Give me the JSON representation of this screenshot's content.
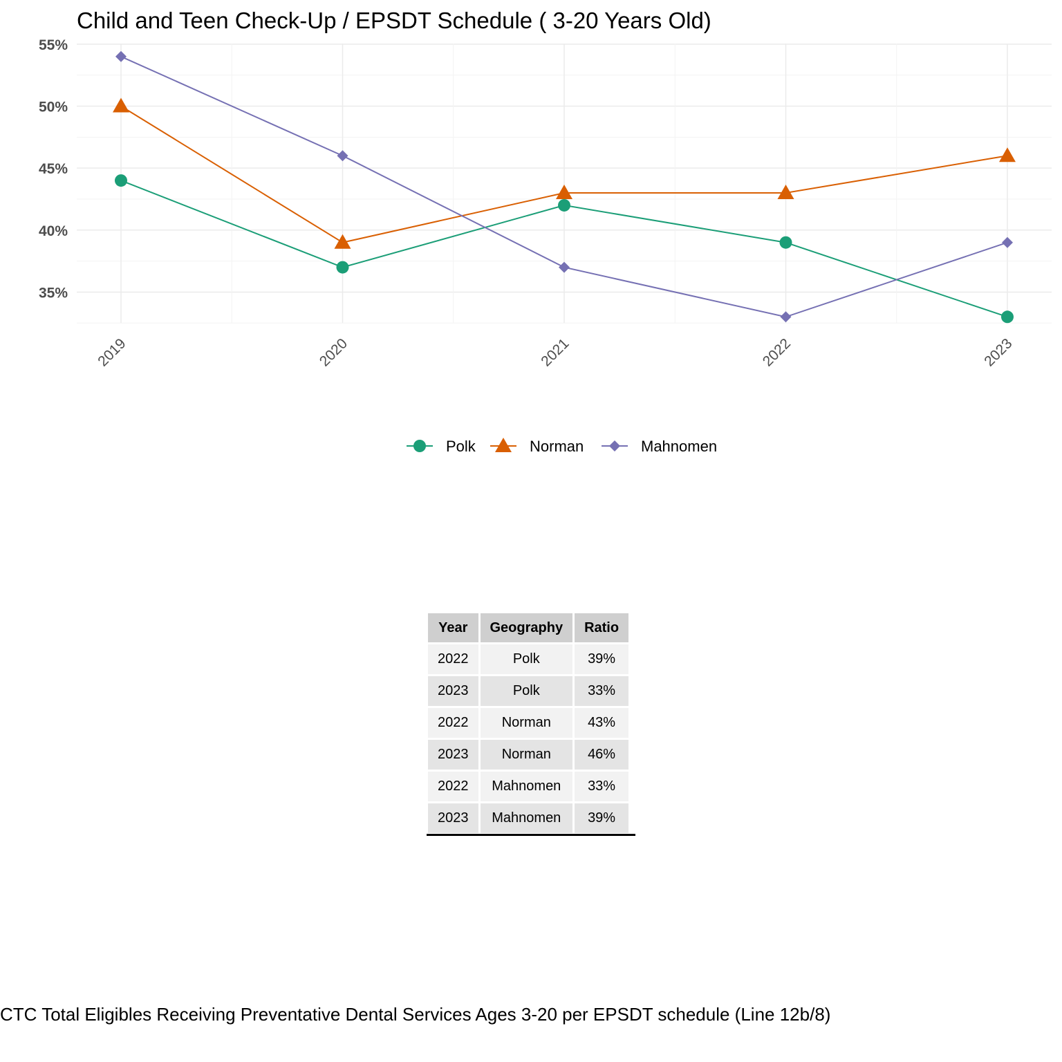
{
  "chart_data": {
    "type": "line",
    "title": "Child and Teen Check-Up / EPSDT Schedule ( 3-20  Years Old)",
    "xlabel": "",
    "ylabel": "",
    "x": [
      "2019",
      "2020",
      "2021",
      "2022",
      "2023"
    ],
    "y_ticks": [
      "35%",
      "40%",
      "45%",
      "50%",
      "55%"
    ],
    "ylim": [
      32.5,
      55
    ],
    "grid": true,
    "legend_position": "bottom",
    "series": [
      {
        "name": "Polk",
        "values": [
          44,
          37,
          42,
          39,
          33
        ],
        "color": "#1b9e77",
        "marker": "circle"
      },
      {
        "name": "Norman",
        "values": [
          50,
          39,
          43,
          43,
          46
        ],
        "color": "#d95f02",
        "marker": "triangle"
      },
      {
        "name": "Mahnomen",
        "values": [
          54,
          46,
          37,
          33,
          39
        ],
        "color": "#7570b3",
        "marker": "diamond"
      }
    ]
  },
  "table": {
    "headers": [
      "Year",
      "Geography",
      "Ratio"
    ],
    "rows": [
      [
        "2022",
        "Polk",
        "39%"
      ],
      [
        "2023",
        "Polk",
        "33%"
      ],
      [
        "2022",
        "Norman",
        "43%"
      ],
      [
        "2023",
        "Norman",
        "46%"
      ],
      [
        "2022",
        "Mahnomen",
        "33%"
      ],
      [
        "2023",
        "Mahnomen",
        "39%"
      ]
    ]
  },
  "caption": "CTC Total Eligibles Receiving Preventative Dental Services Ages 3-20 per EPSDT schedule (Line 12b/8)"
}
